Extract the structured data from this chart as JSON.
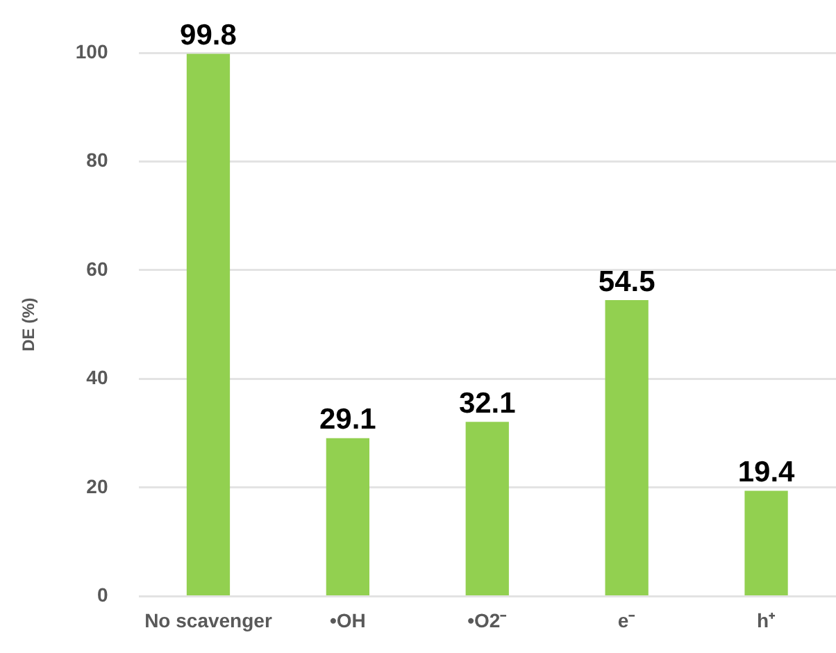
{
  "chart_data": {
    "type": "bar",
    "ylabel": "DE (%)",
    "categories": [
      "No scavenger",
      "•OH",
      "•O2⁻",
      "e⁻",
      "h⁺"
    ],
    "values": [
      99.8,
      29.1,
      32.1,
      54.5,
      19.4
    ],
    "color": "#92d050",
    "ylim": [
      0,
      100
    ],
    "yticks": [
      0,
      20,
      40,
      60,
      80,
      100
    ],
    "grid": "y",
    "data_labels": true,
    "legend": false
  }
}
